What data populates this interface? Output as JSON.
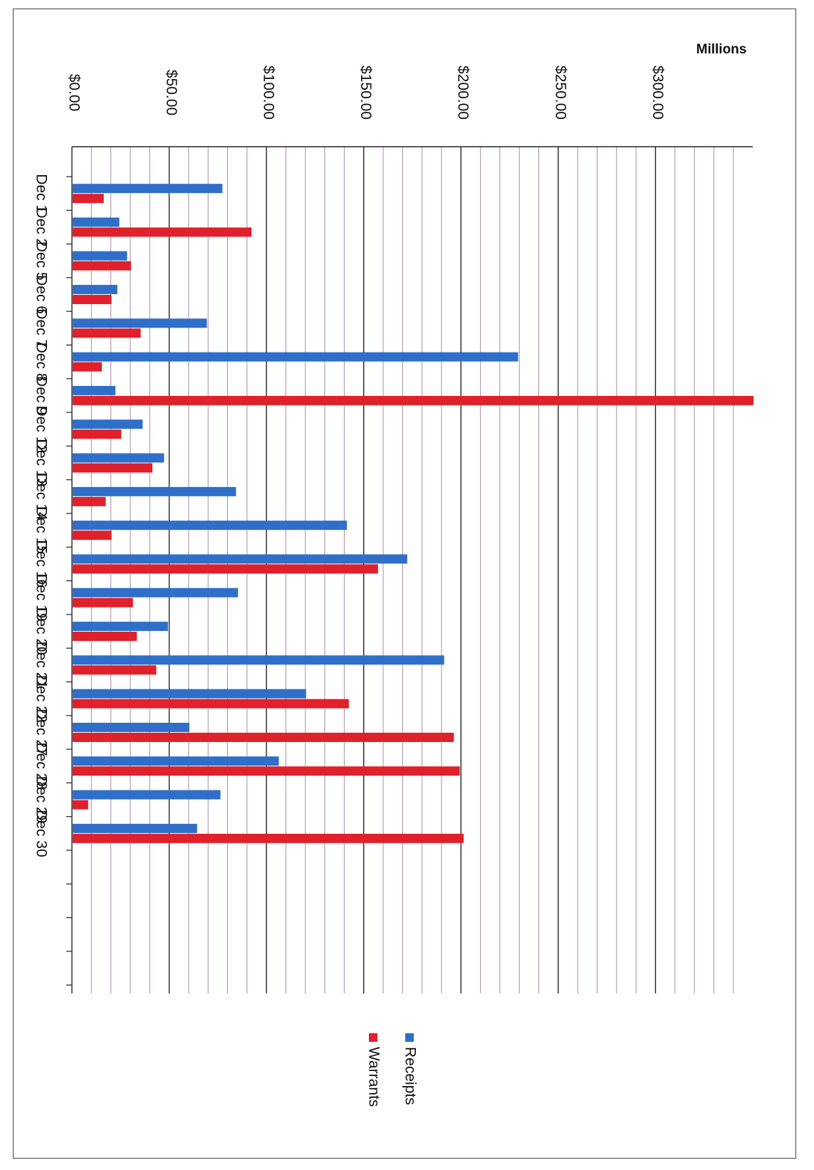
{
  "chart_data": {
    "type": "bar",
    "orientation": "horizontal",
    "units_label": "Millions",
    "categories": [
      "Dec 1",
      "Dec 2",
      "Dec 5",
      "Dec 6",
      "Dec 7",
      "Dec 8",
      "Dec 9",
      "Dec 12",
      "Dec 13",
      "Dec 14",
      "Dec 15",
      "Dec 16",
      "Dec 19",
      "Dec 20",
      "Dec 21",
      "Dec 22",
      "Dec 27",
      "Dec 28",
      "Dec 29",
      "Dec 30"
    ],
    "series": [
      {
        "name": "Receipts",
        "color": "#2f6fc9",
        "values": [
          77,
          24,
          28,
          23,
          69,
          229,
          22,
          36,
          47,
          84,
          141,
          172,
          85,
          49,
          191,
          120,
          60,
          106,
          76,
          64
        ]
      },
      {
        "name": "Warrants",
        "color": "#e0202a",
        "values": [
          16,
          92,
          30,
          20,
          35,
          15,
          350,
          25,
          41,
          17,
          20,
          157,
          31,
          33,
          43,
          142,
          196,
          199,
          8,
          201
        ]
      }
    ],
    "xlim": [
      0,
      350
    ],
    "ticks": [
      0,
      50,
      100,
      150,
      200,
      250,
      300
    ],
    "tick_labels": [
      "$0.00",
      "$50.00",
      "$100.00",
      "$150.00",
      "$200.00",
      "$250.00",
      "$300.00"
    ],
    "grid": true,
    "legend": "bottom",
    "title": "",
    "xlabel": "",
    "ylabel": ""
  }
}
